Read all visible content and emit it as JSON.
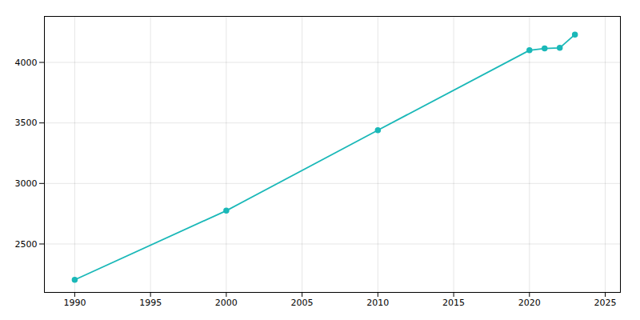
{
  "chart_data": {
    "type": "line",
    "x": [
      1990,
      2000,
      2010,
      2020,
      2021,
      2022,
      2023
    ],
    "values": [
      2204,
      2775,
      3440,
      4100,
      4115,
      4120,
      4230
    ],
    "color": "#1ab8b8",
    "marker": "circle",
    "xlim": [
      1988,
      2026
    ],
    "ylim": [
      2100,
      4380
    ],
    "xticks": [
      1990,
      1995,
      2000,
      2005,
      2010,
      2015,
      2020,
      2025
    ],
    "yticks": [
      2500,
      3000,
      3500,
      4000
    ],
    "grid": true
  }
}
